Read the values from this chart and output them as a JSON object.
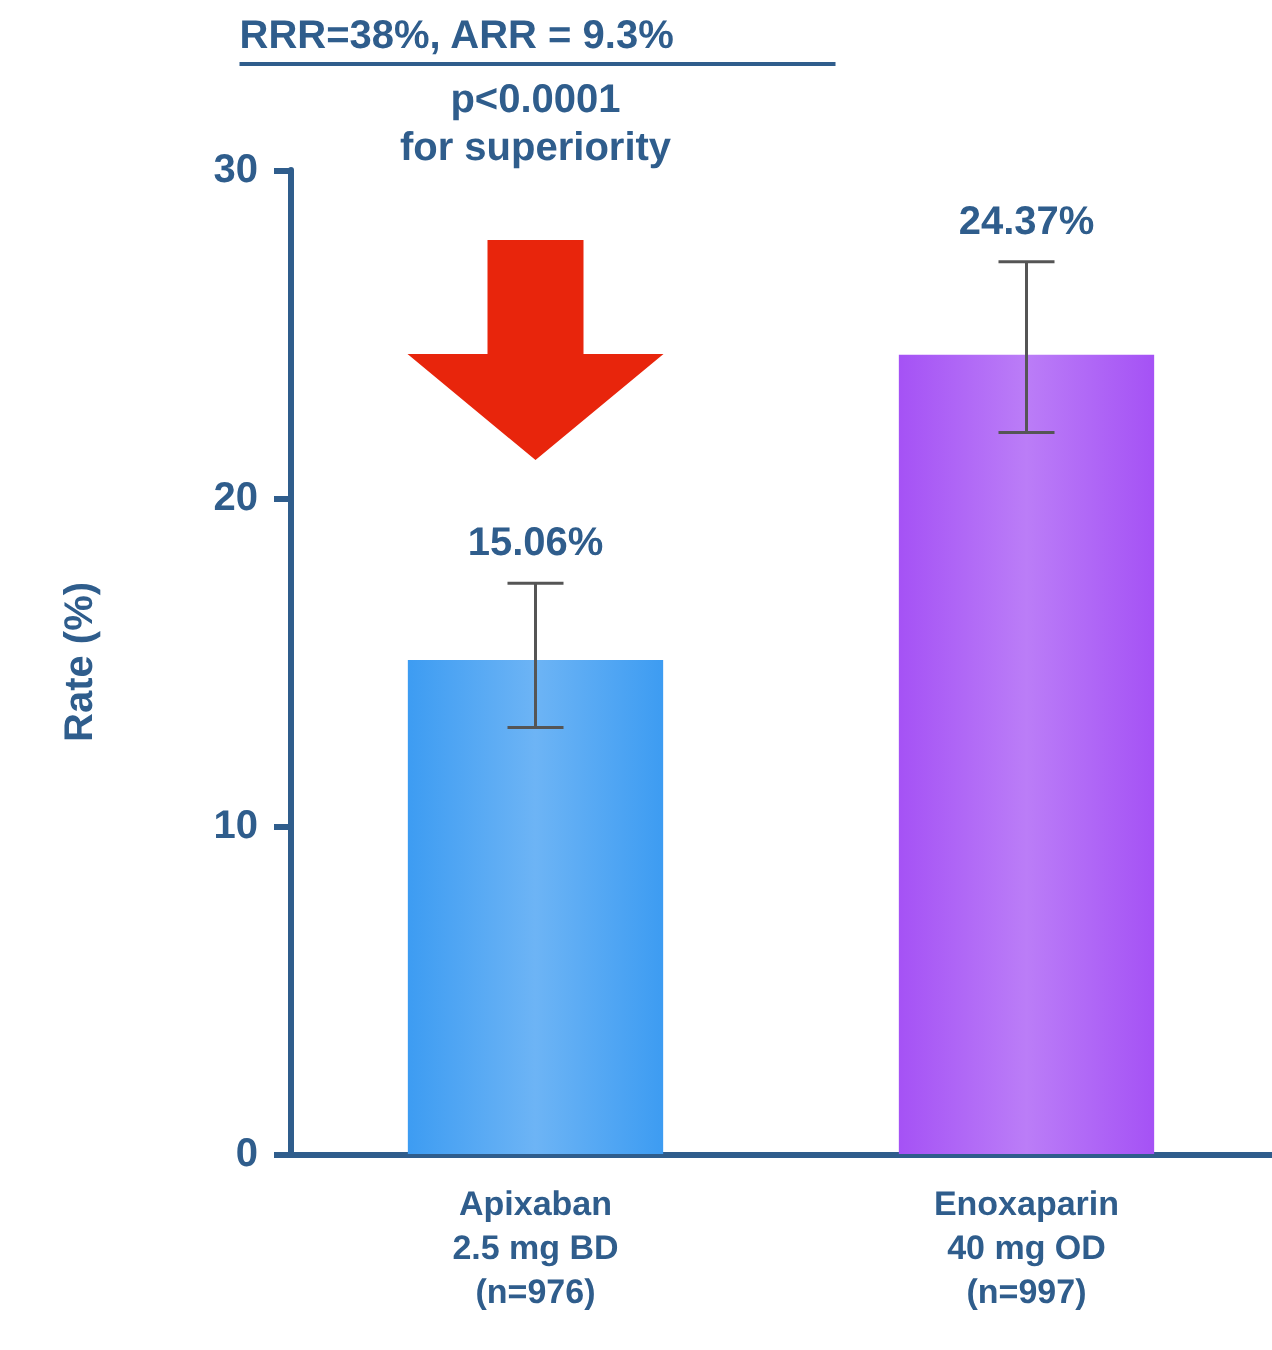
{
  "chart_data": {
    "type": "bar",
    "ylabel": "Rate (%)",
    "categories": [
      "Apixaban\n2.5 mg BD\n(n=976)",
      "Enoxaparin\n40 mg OD\n(n=997)"
    ],
    "values": [
      15.06,
      24.37
    ],
    "colors": [
      "#3d9cf2",
      "#a552f5"
    ],
    "errors": [
      [
        13.0,
        17.4
      ],
      [
        22.0,
        27.2
      ]
    ],
    "value_labels": [
      "15.06%",
      "24.37%"
    ],
    "ylim": [
      0,
      30
    ],
    "yticks": [
      0,
      10,
      20,
      30
    ],
    "grid": false,
    "annotations": [
      "RRR=38%, ARR = 9.3%",
      "p<0.0001 for superiority"
    ]
  }
}
